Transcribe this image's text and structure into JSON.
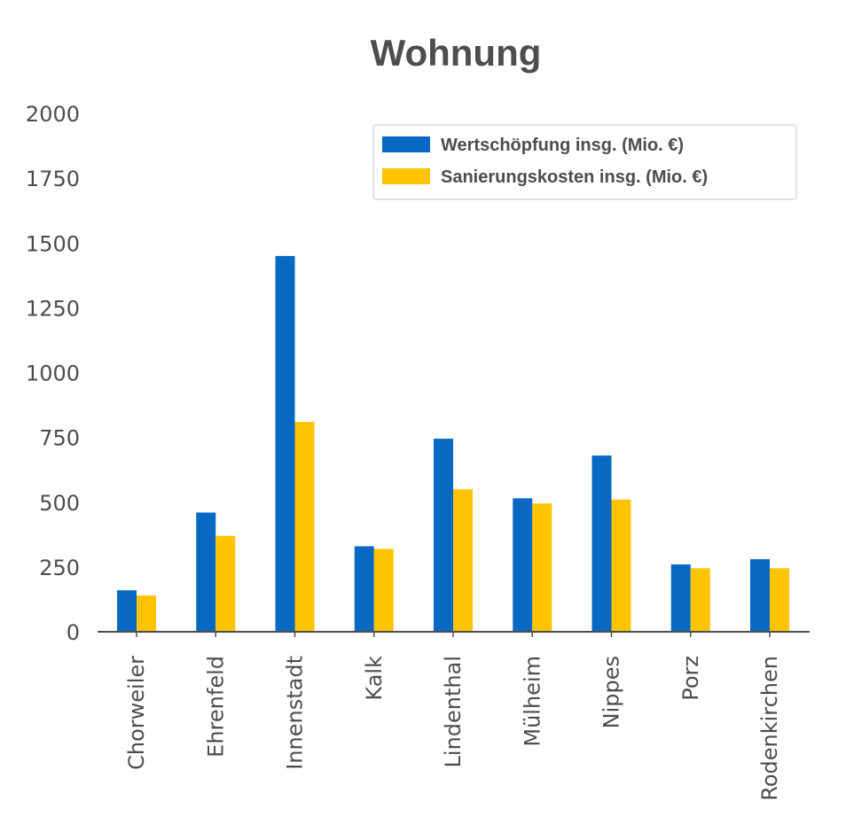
{
  "chart_data": {
    "type": "bar",
    "title": "Wohnung",
    "xlabel": "",
    "ylabel": "",
    "ylim": [
      0,
      2000
    ],
    "yticks": [
      0,
      250,
      500,
      750,
      1000,
      1250,
      1500,
      1750,
      2000
    ],
    "grid": false,
    "legend_position": "top-right",
    "categories": [
      "Chorweiler",
      "Ehrenfeld",
      "Innenstadt",
      "Kalk",
      "Lindenthal",
      "Mülheim",
      "Nippes",
      "Porz",
      "Rodenkirchen"
    ],
    "series": [
      {
        "name": "Wertschöpfung insg. (Mio. €)",
        "color": "#0869c3",
        "values": [
          160,
          460,
          1450,
          330,
          745,
          515,
          680,
          260,
          280
        ]
      },
      {
        "name": "Sanierungskosten insg. (Mio. €)",
        "color": "#ffc300",
        "values": [
          140,
          370,
          810,
          320,
          550,
          495,
          510,
          245,
          245
        ]
      }
    ]
  }
}
